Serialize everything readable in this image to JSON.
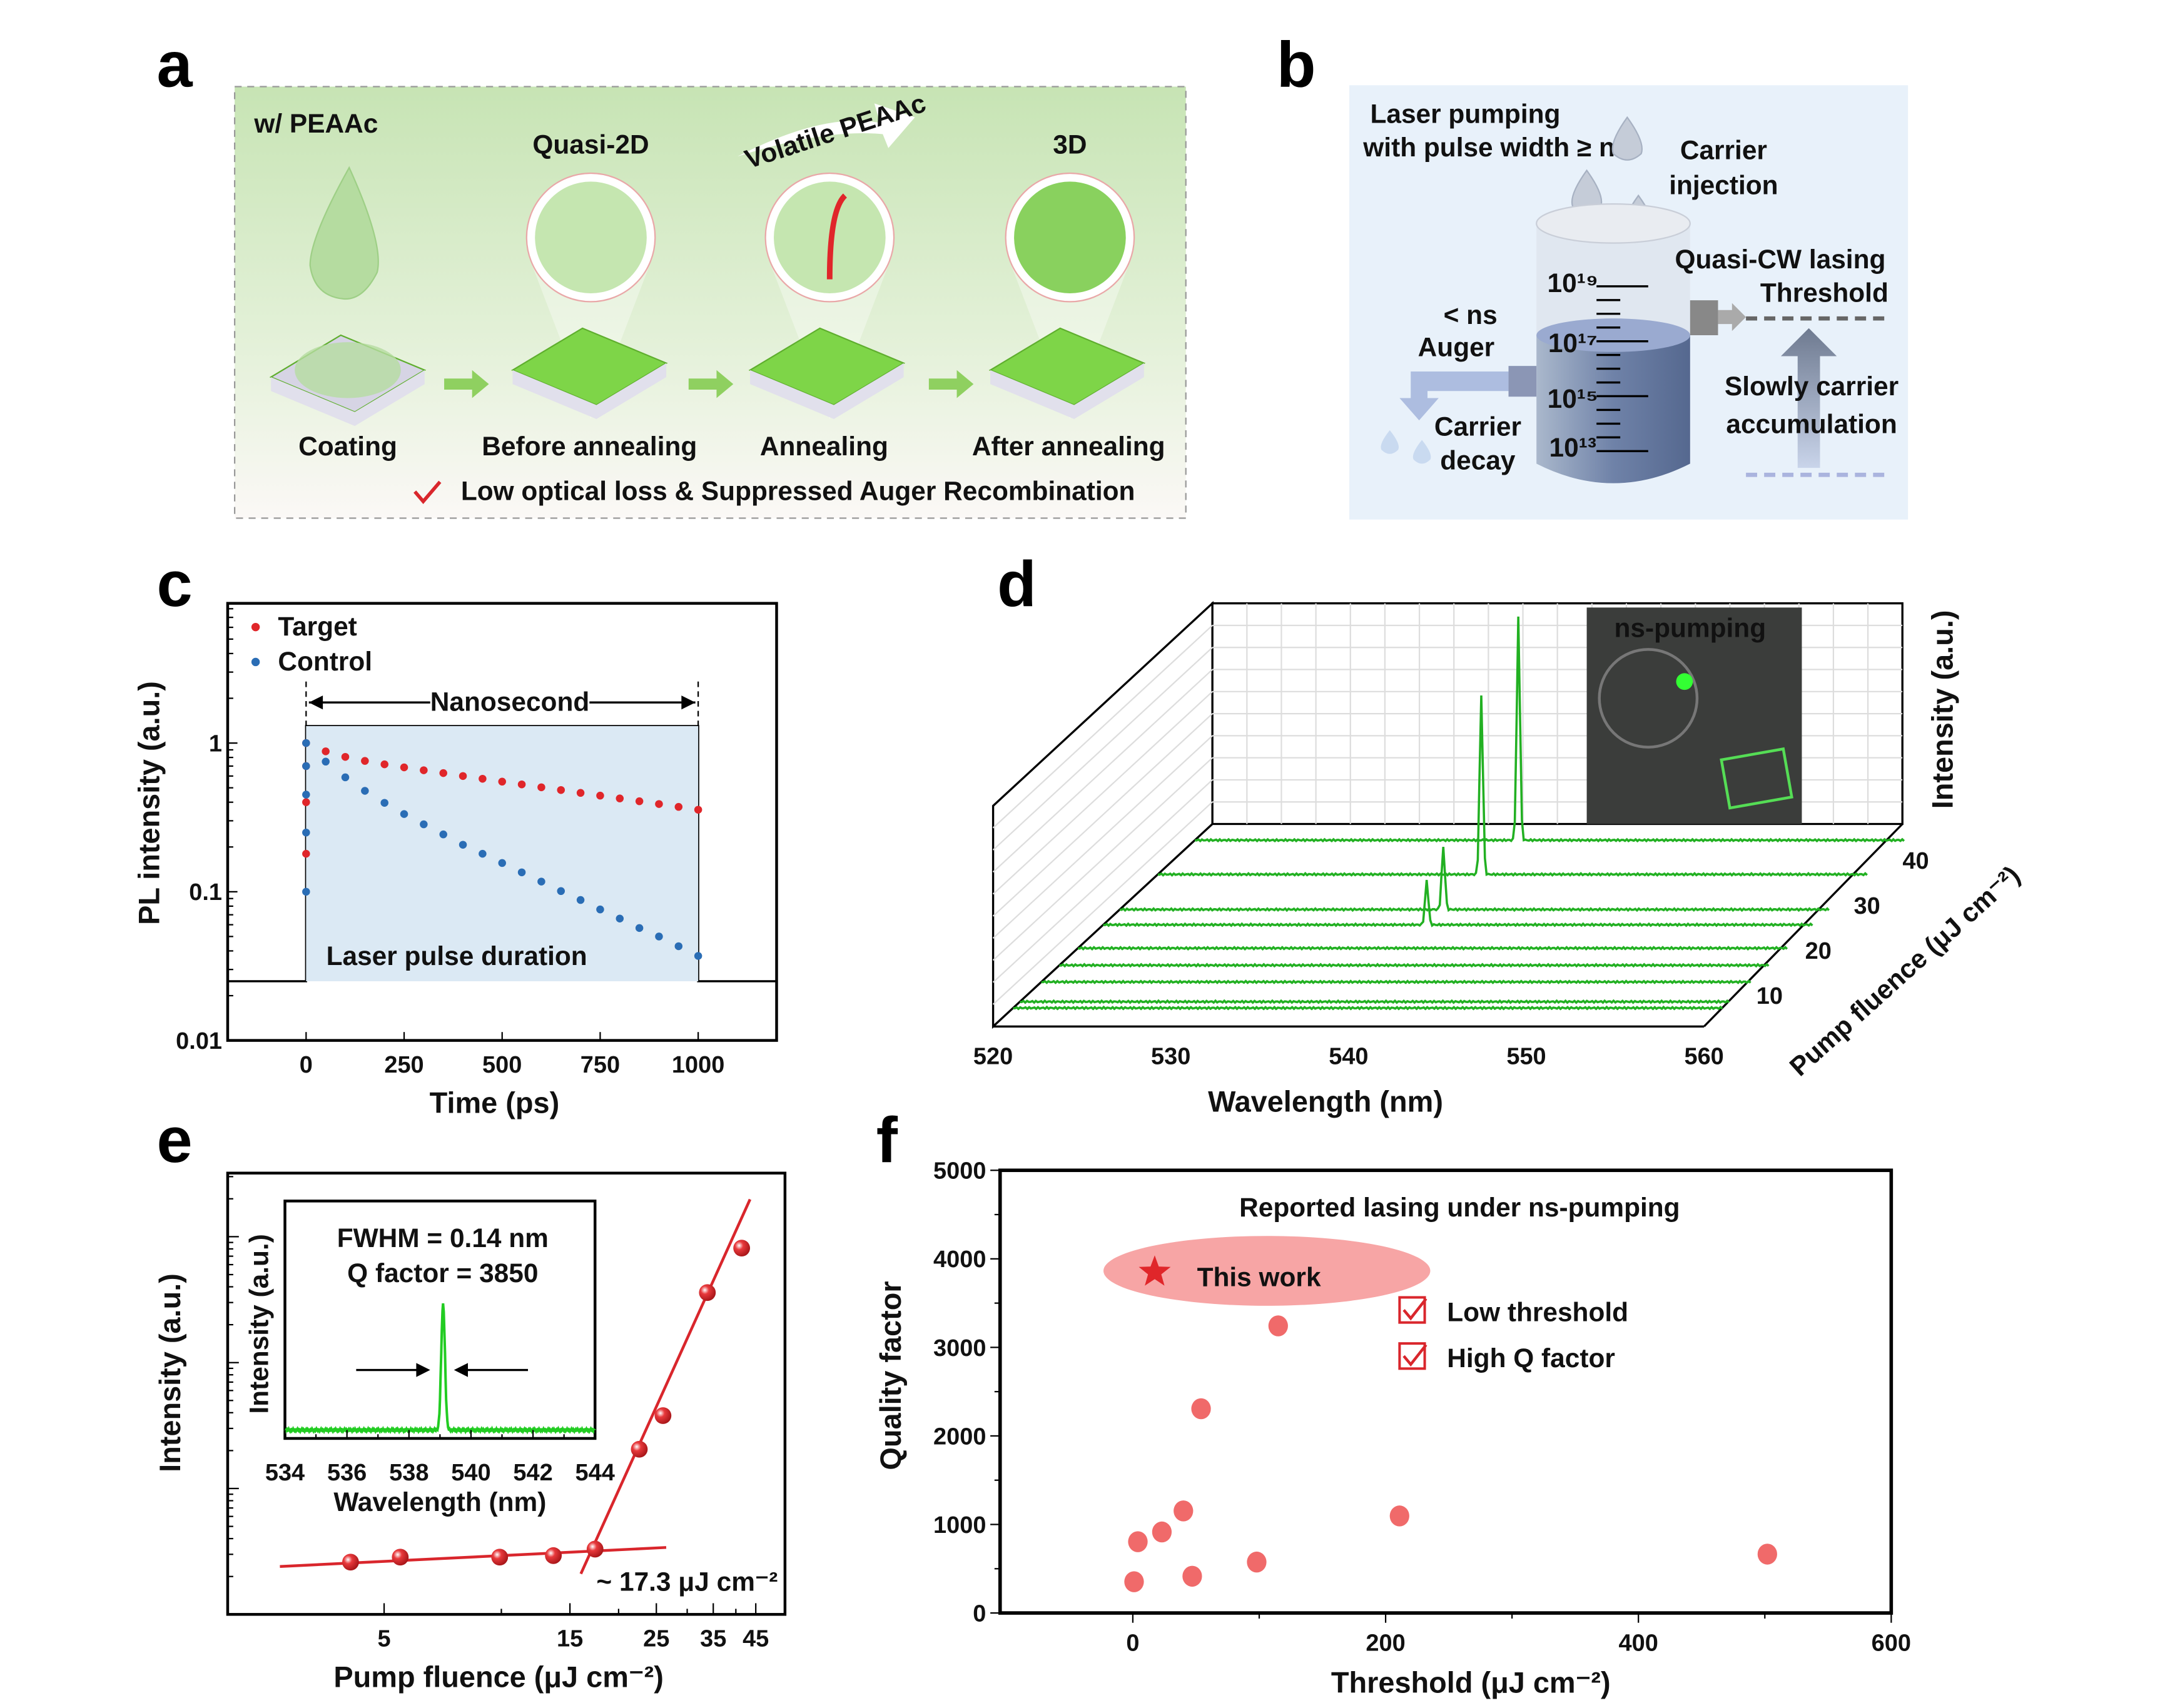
{
  "panel_letters": [
    "a",
    "b",
    "c",
    "d",
    "e",
    "f"
  ],
  "panel_a": {
    "header": "w/ PEAAc",
    "quasi2d": "Quasi-2D",
    "volatile": "Volatile PEAAc",
    "three_d": "3D",
    "steps": [
      "Coating",
      "Before annealing",
      "Annealing",
      "After annealing"
    ],
    "conclusion": "Low optical loss &  Suppressed Auger Recombination",
    "colors": {
      "green_text": "#5fae2e",
      "red_text": "#d9262c",
      "bg_top": "#c7e4b4",
      "bg_bottom": "#fbf8f6"
    }
  },
  "panel_b": {
    "title": "Laser pumping",
    "subtitle": "with pulse width ≥ ns",
    "injection": [
      "Carrier",
      "injection"
    ],
    "lt_ns": "< ns",
    "auger": "Auger",
    "decay": [
      "Carrier",
      "decay"
    ],
    "threshold": [
      "Quasi-CW lasing",
      "Threshold"
    ],
    "accumulation": [
      "Slowly carrier",
      "accumulation"
    ],
    "scale_labels": [
      "10¹⁹",
      "10¹⁷",
      "10¹⁵",
      "10¹³"
    ],
    "colors": {
      "bg": "#e8f1fa",
      "navy": "#1f3a6e",
      "red": "#d9262c",
      "liquid": "#6f82a8"
    }
  },
  "chart_data": [
    {
      "panel": "c",
      "type": "scatter",
      "xlabel": "Time (ps)",
      "ylabel": "PL intensity (a.u.)",
      "xticks": [
        0,
        250,
        500,
        750,
        1000
      ],
      "yticks": [
        0.01,
        0.1,
        1
      ],
      "ytick_labels": [
        "0.01",
        "0.1",
        "1"
      ],
      "xlim": [
        -200,
        1200
      ],
      "ylim": [
        0.01,
        8.7
      ],
      "yscale": "log",
      "legend_placement": "top-left",
      "annotations": {
        "nanosecond": "Nanosecond",
        "pulse": "Laser pulse duration"
      },
      "pulse": {
        "start_ps": 0,
        "end_ps": 1000,
        "level": 1.3,
        "baseline": 0.025,
        "fill": "#dbe9f4"
      },
      "series": [
        {
          "name": "Target",
          "color": "#e0262a",
          "x": [
            0,
            0,
            0,
            0,
            50,
            100,
            150,
            200,
            250,
            300,
            350,
            400,
            450,
            500,
            550,
            600,
            650,
            700,
            750,
            800,
            850,
            900,
            950,
            1000
          ],
          "y": [
            0.18,
            0.4,
            0.7,
            1.0,
            0.879,
            0.807,
            0.758,
            0.719,
            0.686,
            0.656,
            0.628,
            0.6,
            0.575,
            0.55,
            0.527,
            0.504,
            0.483,
            0.462,
            0.443,
            0.424,
            0.406,
            0.389,
            0.372,
            0.356
          ]
        },
        {
          "name": "Control",
          "color": "#2a6db5",
          "x": [
            0,
            0,
            0,
            0,
            0,
            50,
            100,
            150,
            200,
            250,
            300,
            350,
            400,
            450,
            500,
            550,
            600,
            650,
            700,
            750,
            800,
            850,
            900,
            950,
            1000
          ],
          "y": [
            0.1,
            0.25,
            0.45,
            0.7,
            1.0,
            0.75,
            0.588,
            0.477,
            0.396,
            0.333,
            0.284,
            0.243,
            0.207,
            0.18,
            0.156,
            0.135,
            0.117,
            0.101,
            0.088,
            0.076,
            0.066,
            0.057,
            0.05,
            0.043,
            0.037
          ]
        }
      ]
    },
    {
      "panel": "d",
      "type": "line",
      "xlabel": "Wavelength (nm)",
      "ylabel": "Intensity (a.u.)",
      "zlabel": "Pump fluence (μJ cm⁻²)",
      "xticks": [
        520,
        530,
        540,
        550,
        560
      ],
      "zticks": [
        10,
        20,
        30,
        40
      ],
      "xlim": [
        520,
        560
      ],
      "zlim": [
        0,
        45
      ],
      "color": "#22b022",
      "inset_label": "ns-pumping",
      "traces": [
        {
          "fluence": 4.1,
          "peak_nm": 538.2,
          "peak_intensity": 0
        },
        {
          "fluence": 5.5,
          "peak_nm": 538.2,
          "peak_intensity": 0
        },
        {
          "fluence": 9.9,
          "peak_nm": 538.2,
          "peak_intensity": 0
        },
        {
          "fluence": 13.6,
          "peak_nm": 538.2,
          "peak_intensity": 0
        },
        {
          "fluence": 17.4,
          "peak_nm": 538.2,
          "peak_intensity": 0
        },
        {
          "fluence": 22.6,
          "peak_nm": 538.2,
          "peak_intensity": 0.2
        },
        {
          "fluence": 26.0,
          "peak_nm": 538.2,
          "peak_intensity": 0.28
        },
        {
          "fluence": 33.8,
          "peak_nm": 538.2,
          "peak_intensity": 0.8
        },
        {
          "fluence": 41.4,
          "peak_nm": 538.2,
          "peak_intensity": 1.0
        }
      ]
    },
    {
      "panel": "e",
      "type": "scatter",
      "xlabel": "Pump fluence (μJ cm⁻²)",
      "ylabel": "Intensity (a.u.)",
      "xscale": "log",
      "yscale": "log",
      "xticks": [
        5,
        15,
        25,
        35,
        45
      ],
      "xlim": [
        2.0,
        60
      ],
      "ylim": [
        1,
        3200
      ],
      "color": "#d9262c",
      "x": [
        4.1,
        5.5,
        9.9,
        13.6,
        17.4,
        22.6,
        26.0,
        33.8,
        41.4
      ],
      "y": [
        2.6,
        2.85,
        2.85,
        2.93,
        3.3,
        20.5,
        37.9,
        360,
        812
      ],
      "fits": [
        {
          "x": [
            2.7,
            26.5
          ],
          "y": [
            2.4,
            3.4
          ]
        },
        {
          "x": [
            16.0,
            43.5
          ],
          "y": [
            2.1,
            1980
          ]
        }
      ],
      "threshold_label": "~ 17.3 μJ cm⁻²",
      "inset": {
        "xlabel": "Wavelength (nm)",
        "ylabel": "Intensity (a.u.)",
        "xticks": [
          534,
          536,
          538,
          540,
          542,
          544
        ],
        "xlim": [
          534,
          544
        ],
        "peak_nm": 539.1,
        "fwhm_text": "FWHM = 0.14 nm",
        "q_text": "Q factor = 3850",
        "color": "#22cc22"
      }
    },
    {
      "panel": "f",
      "type": "scatter",
      "title": "Reported lasing under ns-pumping",
      "xlabel": "Threshold (μJ cm⁻²)",
      "ylabel": "Quality factor",
      "xticks": [
        0,
        200,
        400,
        600
      ],
      "yticks": [
        0,
        1000,
        2000,
        3000,
        4000,
        5000
      ],
      "xlim": [
        -105,
        600
      ],
      "ylim": [
        0,
        5000
      ],
      "color": "#f06a6a",
      "x": [
        1,
        4,
        23,
        40,
        47,
        54,
        98,
        115,
        211,
        502
      ],
      "y": [
        353,
        805,
        915,
        1153,
        415,
        2307,
        575,
        3243,
        1096,
        665
      ],
      "this_work": {
        "label": "This work",
        "x": 17.3,
        "y": 3850,
        "color": "#e0262a",
        "highlight": "#f7a5a5"
      },
      "checks": [
        "Low threshold",
        "High Q factor"
      ]
    }
  ]
}
